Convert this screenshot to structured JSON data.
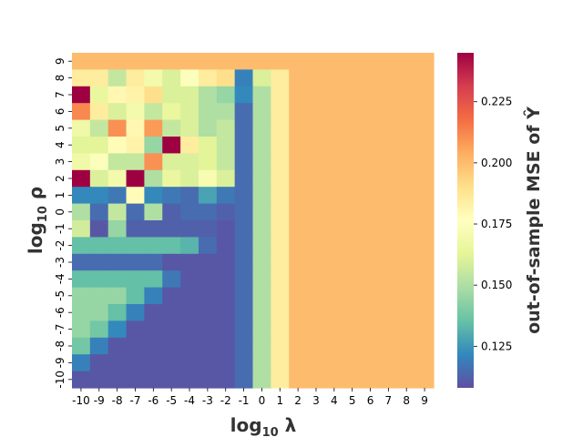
{
  "chart_data": {
    "type": "heatmap",
    "x": {
      "label_base": "log",
      "label_sub": "10",
      "label_symbol": " λ",
      "ticks": [
        "-10",
        "-9",
        "-8",
        "-7",
        "-6",
        "-5",
        "-4",
        "-3",
        "-2",
        "-1",
        "0",
        "1",
        "2",
        "3",
        "4",
        "5",
        "6",
        "7",
        "8",
        "9"
      ]
    },
    "y": {
      "label_base": "log",
      "label_sub": "10",
      "label_symbol": " ρ",
      "ticks": [
        "9",
        "8",
        "7",
        "6",
        "5",
        "4",
        "3",
        "2",
        "1",
        "0",
        "-1",
        "-2",
        "-3",
        "-4",
        "-5",
        "-6",
        "-7",
        "-8",
        "-9",
        "-10"
      ]
    },
    "colorbar": {
      "label": "out-of-sample MSE of Ŷ",
      "ticks": [
        0.125,
        0.15,
        0.175,
        0.2,
        0.225
      ],
      "tick_labels": [
        "0.125",
        "0.150",
        "0.175",
        "0.200",
        "0.225"
      ],
      "vmin": 0.108,
      "vmax": 0.245,
      "colormap": "Spectral_r",
      "stops": [
        "#5e4fa2",
        "#3288bd",
        "#66c2a5",
        "#abdda4",
        "#e6f598",
        "#ffffbf",
        "#fee08b",
        "#fdae61",
        "#f46d43",
        "#d53e4f",
        "#9e0142"
      ]
    },
    "rows_top_to_bottom": [
      [
        0.2,
        0.2,
        0.2,
        0.2,
        0.2,
        0.2,
        0.2,
        0.2,
        0.2,
        0.2,
        0.2,
        0.2,
        0.2,
        0.2,
        0.2,
        0.2,
        0.2,
        0.2,
        0.2,
        0.2
      ],
      [
        0.185,
        0.185,
        0.155,
        0.185,
        0.17,
        0.16,
        0.175,
        0.185,
        0.19,
        0.12,
        0.16,
        0.185,
        0.2,
        0.2,
        0.2,
        0.2,
        0.2,
        0.2,
        0.2,
        0.2
      ],
      [
        0.245,
        0.165,
        0.18,
        0.182,
        0.19,
        0.16,
        0.16,
        0.15,
        0.145,
        0.122,
        0.15,
        0.185,
        0.2,
        0.2,
        0.2,
        0.2,
        0.2,
        0.2,
        0.2,
        0.2
      ],
      [
        0.212,
        0.185,
        0.16,
        0.17,
        0.155,
        0.165,
        0.16,
        0.15,
        0.15,
        0.115,
        0.15,
        0.185,
        0.2,
        0.2,
        0.2,
        0.2,
        0.2,
        0.2,
        0.2,
        0.2
      ],
      [
        0.168,
        0.155,
        0.21,
        0.18,
        0.208,
        0.155,
        0.16,
        0.15,
        0.155,
        0.115,
        0.15,
        0.185,
        0.2,
        0.2,
        0.2,
        0.2,
        0.2,
        0.2,
        0.2,
        0.2
      ],
      [
        0.162,
        0.162,
        0.178,
        0.182,
        0.145,
        0.245,
        0.185,
        0.162,
        0.155,
        0.115,
        0.15,
        0.185,
        0.2,
        0.2,
        0.2,
        0.2,
        0.2,
        0.2,
        0.2,
        0.2
      ],
      [
        0.168,
        0.175,
        0.155,
        0.155,
        0.21,
        0.16,
        0.16,
        0.162,
        0.155,
        0.115,
        0.15,
        0.185,
        0.2,
        0.2,
        0.2,
        0.2,
        0.2,
        0.2,
        0.2,
        0.2
      ],
      [
        0.245,
        0.16,
        0.17,
        0.245,
        0.15,
        0.165,
        0.16,
        0.172,
        0.16,
        0.115,
        0.15,
        0.185,
        0.2,
        0.2,
        0.2,
        0.2,
        0.2,
        0.2,
        0.2,
        0.2
      ],
      [
        0.122,
        0.122,
        0.118,
        0.178,
        0.122,
        0.118,
        0.115,
        0.128,
        0.118,
        0.115,
        0.15,
        0.185,
        0.2,
        0.2,
        0.2,
        0.2,
        0.2,
        0.2,
        0.2,
        0.2
      ],
      [
        0.15,
        0.115,
        0.155,
        0.115,
        0.15,
        0.112,
        0.115,
        0.115,
        0.112,
        0.115,
        0.15,
        0.185,
        0.2,
        0.2,
        0.2,
        0.2,
        0.2,
        0.2,
        0.2,
        0.2
      ],
      [
        0.158,
        0.11,
        0.145,
        0.112,
        0.112,
        0.112,
        0.112,
        0.112,
        0.11,
        0.115,
        0.15,
        0.185,
        0.2,
        0.2,
        0.2,
        0.2,
        0.2,
        0.2,
        0.2,
        0.2
      ],
      [
        0.135,
        0.135,
        0.135,
        0.135,
        0.135,
        0.135,
        0.132,
        0.115,
        0.11,
        0.115,
        0.15,
        0.185,
        0.2,
        0.2,
        0.2,
        0.2,
        0.2,
        0.2,
        0.2,
        0.2
      ],
      [
        0.115,
        0.115,
        0.115,
        0.115,
        0.115,
        0.11,
        0.11,
        0.11,
        0.11,
        0.115,
        0.15,
        0.185,
        0.2,
        0.2,
        0.2,
        0.2,
        0.2,
        0.2,
        0.2,
        0.2
      ],
      [
        0.135,
        0.135,
        0.135,
        0.135,
        0.135,
        0.118,
        0.11,
        0.11,
        0.11,
        0.115,
        0.15,
        0.185,
        0.2,
        0.2,
        0.2,
        0.2,
        0.2,
        0.2,
        0.2,
        0.2
      ],
      [
        0.145,
        0.145,
        0.145,
        0.135,
        0.12,
        0.11,
        0.11,
        0.11,
        0.11,
        0.115,
        0.15,
        0.185,
        0.2,
        0.2,
        0.2,
        0.2,
        0.2,
        0.2,
        0.2,
        0.2
      ],
      [
        0.145,
        0.145,
        0.135,
        0.12,
        0.11,
        0.11,
        0.11,
        0.11,
        0.11,
        0.115,
        0.15,
        0.185,
        0.2,
        0.2,
        0.2,
        0.2,
        0.2,
        0.2,
        0.2,
        0.2
      ],
      [
        0.145,
        0.138,
        0.122,
        0.11,
        0.11,
        0.11,
        0.11,
        0.11,
        0.11,
        0.115,
        0.15,
        0.185,
        0.2,
        0.2,
        0.2,
        0.2,
        0.2,
        0.2,
        0.2,
        0.2
      ],
      [
        0.138,
        0.12,
        0.11,
        0.11,
        0.11,
        0.11,
        0.11,
        0.11,
        0.11,
        0.115,
        0.15,
        0.185,
        0.2,
        0.2,
        0.2,
        0.2,
        0.2,
        0.2,
        0.2,
        0.2
      ],
      [
        0.12,
        0.11,
        0.11,
        0.11,
        0.11,
        0.11,
        0.11,
        0.11,
        0.11,
        0.115,
        0.15,
        0.185,
        0.2,
        0.2,
        0.2,
        0.2,
        0.2,
        0.2,
        0.2,
        0.2
      ],
      [
        0.11,
        0.11,
        0.11,
        0.11,
        0.11,
        0.11,
        0.11,
        0.11,
        0.11,
        0.115,
        0.15,
        0.185,
        0.2,
        0.2,
        0.2,
        0.2,
        0.2,
        0.2,
        0.2,
        0.2
      ]
    ]
  }
}
